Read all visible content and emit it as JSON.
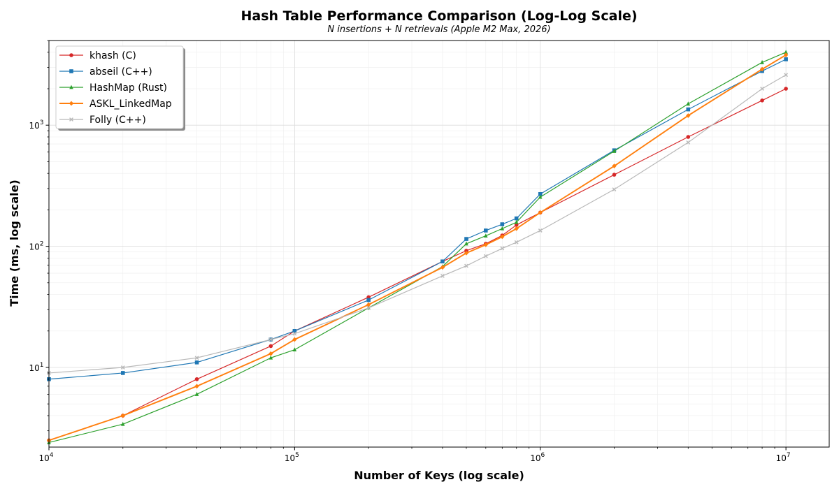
{
  "chart_data": {
    "type": "line",
    "title": "Hash Table Performance Comparison (Log-Log Scale)",
    "subtitle": "N insertions + N retrievals (Apple M2 Max, 2026)",
    "xlabel": "Number of Keys (log scale)",
    "ylabel": "Time (ms, log scale)",
    "xscale": "log",
    "yscale": "log",
    "xlim": [
      10000,
      15000000
    ],
    "ylim": [
      2.2,
      5000
    ],
    "grid": true,
    "legend_position": "top-left",
    "x_ticks": [
      {
        "value": 10000,
        "base": "10",
        "exp": "4"
      },
      {
        "value": 100000,
        "base": "10",
        "exp": "5"
      },
      {
        "value": 1000000,
        "base": "10",
        "exp": "6"
      },
      {
        "value": 10000000,
        "base": "10",
        "exp": "7"
      }
    ],
    "y_ticks": [
      {
        "value": 10,
        "base": "10",
        "exp": "1"
      },
      {
        "value": 100,
        "base": "10",
        "exp": "2"
      },
      {
        "value": 1000,
        "base": "10",
        "exp": "3"
      }
    ],
    "series": [
      {
        "name": "khash (C)",
        "color": "#d62728",
        "marker": "circle",
        "x": [
          10000,
          20000,
          40000,
          80000,
          100000,
          200000,
          400000,
          500000,
          600000,
          700000,
          800000,
          1000000,
          2000000,
          4000000,
          8000000,
          10000000
        ],
        "y": [
          2.5,
          4.0,
          8.0,
          15,
          20,
          38,
          75,
          92,
          105,
          123,
          150,
          190,
          390,
          800,
          1600,
          2000
        ]
      },
      {
        "name": "abseil (C++)",
        "color": "#1f77b4",
        "marker": "square",
        "x": [
          10000,
          20000,
          40000,
          80000,
          100000,
          200000,
          400000,
          500000,
          600000,
          700000,
          800000,
          1000000,
          2000000,
          4000000,
          8000000,
          10000000
        ],
        "y": [
          8.0,
          9.0,
          11,
          17,
          20,
          36,
          75,
          115,
          135,
          152,
          170,
          270,
          620,
          1350,
          2800,
          3500
        ]
      },
      {
        "name": "HashMap (Rust)",
        "color": "#2ca02c",
        "marker": "triangle",
        "x": [
          10000,
          20000,
          40000,
          80000,
          100000,
          200000,
          400000,
          500000,
          600000,
          700000,
          800000,
          1000000,
          2000000,
          4000000,
          8000000,
          10000000
        ],
        "y": [
          2.4,
          3.4,
          6.0,
          12,
          14,
          31,
          68,
          105,
          122,
          140,
          158,
          255,
          610,
          1500,
          3300,
          4000
        ]
      },
      {
        "name": "ASKL_LinkedMap",
        "color": "#ff7f0e",
        "marker": "diamond",
        "x": [
          10000,
          20000,
          40000,
          80000,
          100000,
          200000,
          400000,
          500000,
          600000,
          700000,
          800000,
          1000000,
          2000000,
          4000000,
          8000000,
          10000000
        ],
        "y": [
          2.5,
          4.0,
          7.0,
          13,
          17,
          33,
          67,
          88,
          103,
          120,
          140,
          190,
          460,
          1200,
          2900,
          3800
        ]
      },
      {
        "name": "Folly (C++)",
        "color": "#b8b8b8",
        "marker": "x",
        "x": [
          10000,
          20000,
          40000,
          80000,
          100000,
          200000,
          400000,
          500000,
          600000,
          700000,
          800000,
          1000000,
          2000000,
          4000000,
          8000000,
          10000000
        ],
        "y": [
          9.0,
          10,
          12,
          17,
          19,
          31,
          57,
          69,
          83,
          96,
          108,
          135,
          295,
          720,
          2000,
          2600
        ]
      }
    ]
  }
}
